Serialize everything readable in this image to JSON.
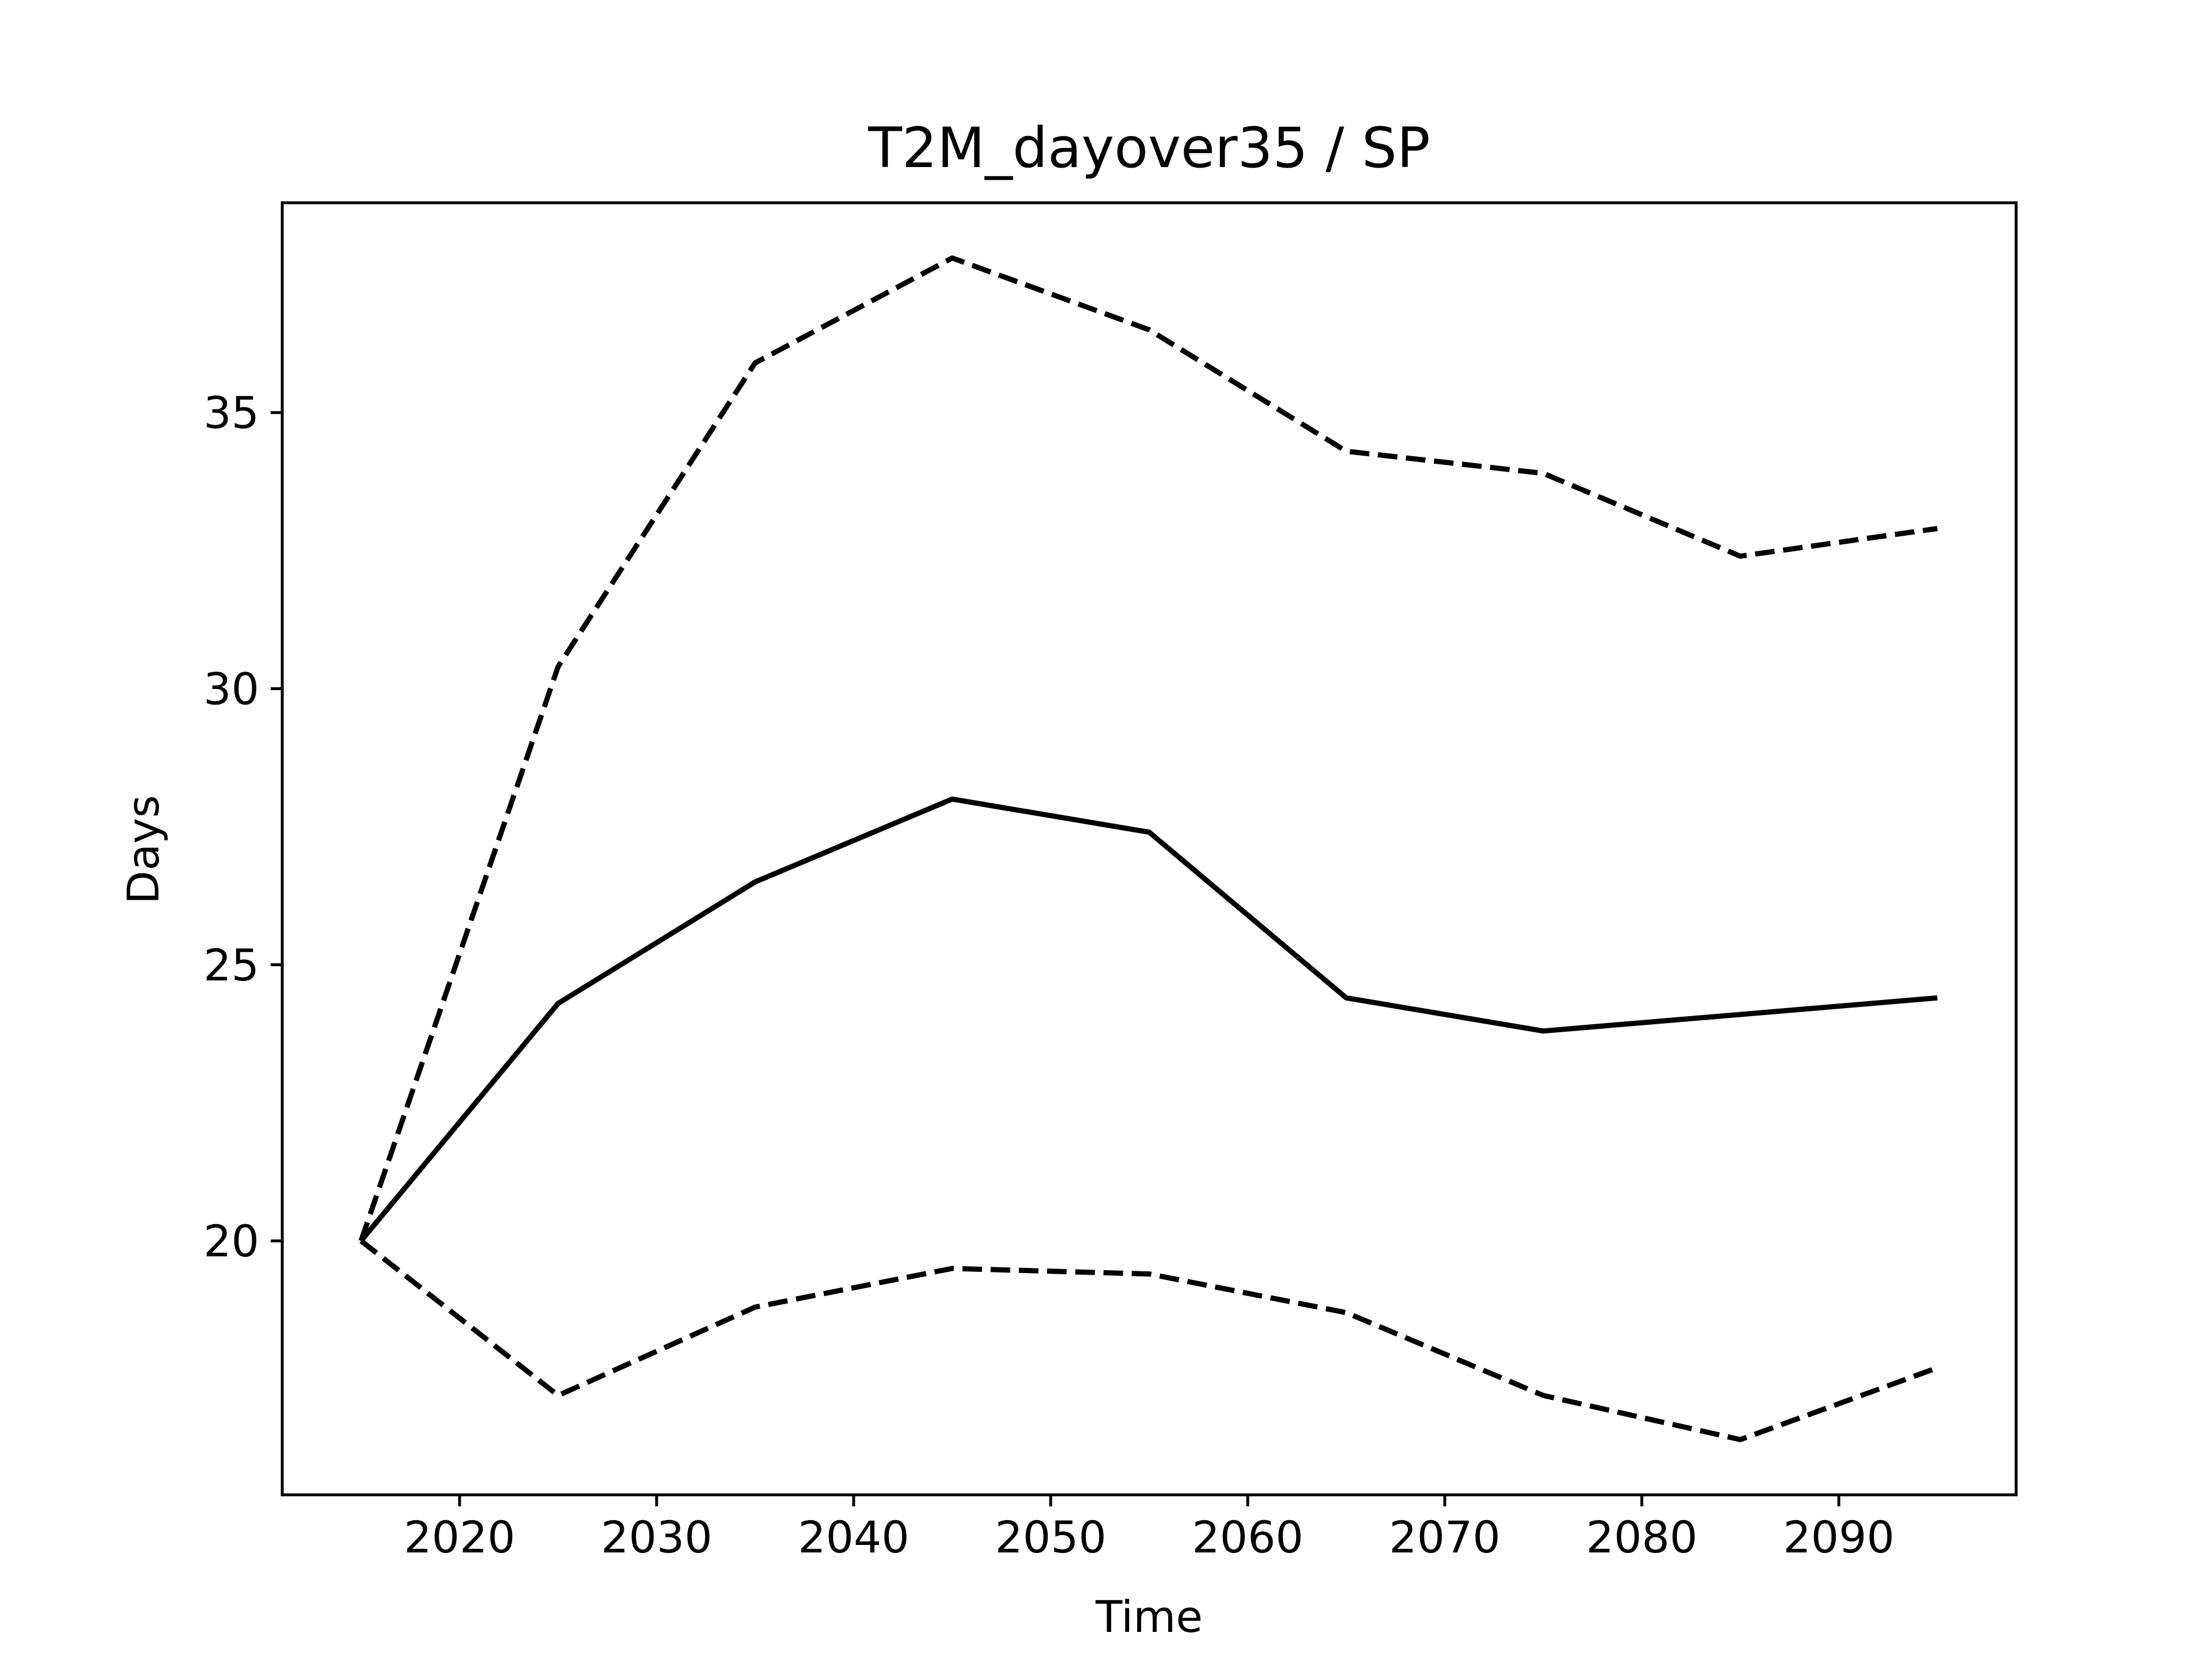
{
  "chart_data": {
    "type": "line",
    "title": "T2M_dayover35 / SP",
    "xlabel": "Time",
    "ylabel": "Days",
    "xlim": [
      2011,
      2099
    ],
    "ylim": [
      15.4,
      38.8
    ],
    "xticks": [
      2020,
      2030,
      2040,
      2050,
      2060,
      2070,
      2080,
      2090
    ],
    "yticks": [
      20,
      25,
      30,
      35
    ],
    "grid": false,
    "legend": "none",
    "x": [
      2015,
      2025,
      2035,
      2045,
      2055,
      2065,
      2075,
      2085,
      2095
    ],
    "series": [
      {
        "style": "dashed",
        "color": "#000000",
        "values": [
          20.0,
          30.4,
          35.9,
          37.8,
          36.5,
          34.3,
          33.9,
          32.4,
          32.9
        ]
      },
      {
        "style": "solid",
        "color": "#000000",
        "values": [
          20.0,
          24.3,
          26.5,
          28.0,
          27.4,
          24.4,
          23.8,
          24.1,
          24.4
        ]
      },
      {
        "style": "dashed",
        "color": "#000000",
        "values": [
          20.0,
          17.2,
          18.8,
          19.5,
          19.4,
          18.7,
          17.2,
          16.4,
          17.7
        ]
      }
    ]
  }
}
